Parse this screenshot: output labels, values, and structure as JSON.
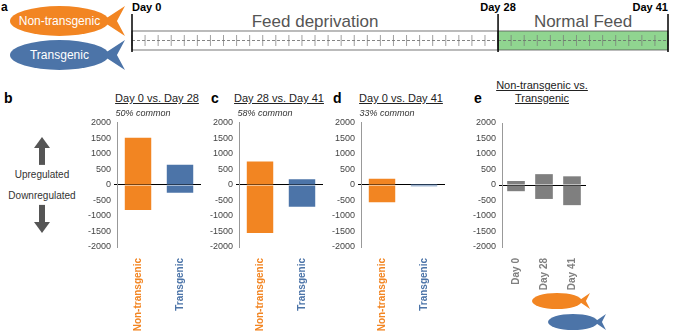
{
  "timeline": {
    "panel": "a",
    "groups": [
      {
        "label": "Non-transgenic",
        "color": "#f28522"
      },
      {
        "label": "Transgenic",
        "color": "#4c74a8"
      }
    ],
    "markers": [
      {
        "day": 0,
        "label": "Day 0"
      },
      {
        "day": 28,
        "label": "Day 28"
      },
      {
        "day": 41,
        "label": "Day 41"
      }
    ],
    "phases": [
      {
        "label": "Feed deprivation",
        "from": 0,
        "to": 28,
        "color": "#ffffff"
      },
      {
        "label": "Normal Feed",
        "from": 28,
        "to": 41,
        "color": "#90d590"
      }
    ]
  },
  "chart_data": [
    {
      "panel": "b",
      "type": "bar",
      "title": "Day 0 vs. Day 28",
      "annotation": "50% common",
      "stacked": true,
      "categories": [
        "Non-transgenic",
        "Transgenic"
      ],
      "series": [
        {
          "name": "Upregulated",
          "colors": [
            "#f28522",
            "#4c74a8"
          ],
          "values": [
            1520,
            650
          ]
        },
        {
          "name": "Downregulated",
          "colors": [
            "#f28522",
            "#4c74a8"
          ],
          "values": [
            -810,
            -250
          ]
        }
      ],
      "ylim": [
        -2000,
        2000
      ],
      "yticks": [
        -2000,
        -1500,
        -1000,
        -500,
        0,
        500,
        1000,
        1500,
        2000
      ]
    },
    {
      "panel": "c",
      "type": "bar",
      "title": "Day 28 vs. Day 41",
      "annotation": "58% common",
      "stacked": true,
      "categories": [
        "Non-transgenic",
        "Transgenic"
      ],
      "series": [
        {
          "name": "Upregulated",
          "colors": [
            "#f28522",
            "#4c74a8"
          ],
          "values": [
            750,
            180
          ]
        },
        {
          "name": "Downregulated",
          "colors": [
            "#f28522",
            "#4c74a8"
          ],
          "values": [
            -1550,
            -700
          ]
        }
      ],
      "ylim": [
        -2000,
        2000
      ],
      "yticks": [
        -2000,
        -1500,
        -1000,
        -500,
        0,
        500,
        1000,
        1500,
        2000
      ]
    },
    {
      "panel": "d",
      "type": "bar",
      "title": "Day 0 vs. Day 41",
      "annotation": "33% common",
      "stacked": true,
      "categories": [
        "Non-transgenic",
        "Transgenic"
      ],
      "series": [
        {
          "name": "Upregulated",
          "colors": [
            "#f28522",
            "#4c74a8"
          ],
          "values": [
            200,
            30
          ]
        },
        {
          "name": "Downregulated",
          "colors": [
            "#f28522",
            "#4c74a8"
          ],
          "values": [
            -560,
            -40
          ]
        }
      ],
      "ylim": [
        -2000,
        2000
      ],
      "yticks": [
        -2000,
        -1500,
        -1000,
        -500,
        0,
        500,
        1000,
        1500,
        2000
      ]
    },
    {
      "panel": "e",
      "type": "bar",
      "title": "Non-transgenic vs. Transgenic",
      "stacked": true,
      "categories": [
        "Day 0",
        "Day 28",
        "Day 41"
      ],
      "series": [
        {
          "name": "Upregulated",
          "color": "#7f7f7f",
          "values": [
            130,
            350,
            280
          ]
        },
        {
          "name": "Downregulated",
          "color": "#7f7f7f",
          "values": [
            -200,
            -450,
            -650
          ]
        }
      ],
      "ylim": [
        -2000,
        2000
      ],
      "yticks": [
        -2000,
        -1500,
        -1000,
        -500,
        0,
        500,
        1000,
        1500,
        2000
      ]
    }
  ]
}
